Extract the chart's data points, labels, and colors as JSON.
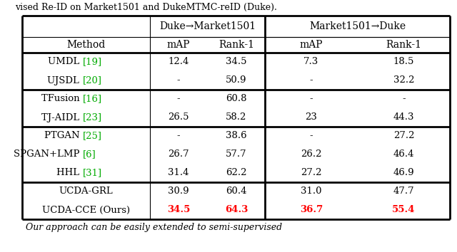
{
  "title_top": "vised Re-ID on Market1501 and DukeMTMC-reID (Duke).",
  "title_bottom": "Our approach can be easily extended to semi-supervised",
  "col_headers_l1": [
    "",
    "Duke→Market1501",
    "Market1501→Duke"
  ],
  "col_headers_l2": [
    "Method",
    "mAP",
    "Rank-1",
    "mAP",
    "Rank-1"
  ],
  "groups": [
    {
      "rows": [
        {
          "method": "UMDL [19]",
          "ref_color": "green",
          "d_map": "12.4",
          "d_rank1": "34.5",
          "m_map": "7.3",
          "m_rank1": "18.5"
        },
        {
          "method": "UJSDL [20]",
          "ref_color": "green",
          "d_map": "-",
          "d_rank1": "50.9",
          "m_map": "-",
          "m_rank1": "32.2"
        }
      ]
    },
    {
      "rows": [
        {
          "method": "TFusion [16]",
          "ref_color": "green",
          "d_map": "-",
          "d_rank1": "60.8",
          "m_map": "-",
          "m_rank1": "-"
        },
        {
          "method": "TJ-AIDL [23]",
          "ref_color": "green",
          "d_map": "26.5",
          "d_rank1": "58.2",
          "m_map": "23",
          "m_rank1": "44.3"
        }
      ]
    },
    {
      "rows": [
        {
          "method": "PTGAN [25]",
          "ref_color": "green",
          "d_map": "-",
          "d_rank1": "38.6",
          "m_map": "-",
          "m_rank1": "27.2"
        },
        {
          "method": "SPGAN+LMP [6]",
          "ref_color": "green",
          "d_map": "26.7",
          "d_rank1": "57.7",
          "m_map": "26.2",
          "m_rank1": "46.4"
        },
        {
          "method": "HHL [31]",
          "ref_color": "green",
          "d_map": "31.4",
          "d_rank1": "62.2",
          "m_map": "27.2",
          "m_rank1": "46.9"
        }
      ]
    },
    {
      "rows": [
        {
          "method": "UCDA-GRL",
          "ref_color": "black",
          "d_map": "30.9",
          "d_rank1": "60.4",
          "m_map": "31.0",
          "m_rank1": "47.7"
        },
        {
          "method": "UCDA-CCE (Ours)",
          "ref_color": "black",
          "d_map": "34.5",
          "d_rank1": "64.3",
          "m_map": "36.7",
          "m_rank1": "55.4",
          "highlight": true
        }
      ]
    }
  ],
  "bg_color": "#ffffff",
  "text_color": "#000000",
  "highlight_color": "#ff0000",
  "ref_color": "#00aa00",
  "border_color": "#000000"
}
